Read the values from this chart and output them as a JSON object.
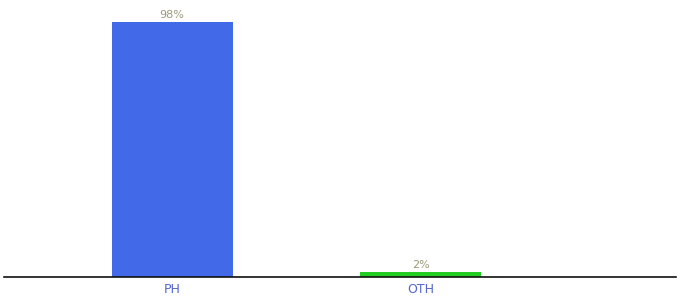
{
  "categories": [
    "PH",
    "OTH"
  ],
  "values": [
    98,
    2
  ],
  "bar_colors": [
    "#4169e8",
    "#22cc22"
  ],
  "bar_labels": [
    "98%",
    "2%"
  ],
  "label_color": "#999977",
  "xlabel_color": "#5566cc",
  "ylim": [
    0,
    105
  ],
  "bar_width": 0.18,
  "background_color": "#ffffff",
  "xlabel_fontsize": 9,
  "label_fontsize": 8,
  "spine_color": "#111111",
  "fig_width": 6.8,
  "fig_height": 3.0,
  "x_positions": [
    0.25,
    0.62
  ],
  "xlim": [
    0.0,
    1.0
  ]
}
